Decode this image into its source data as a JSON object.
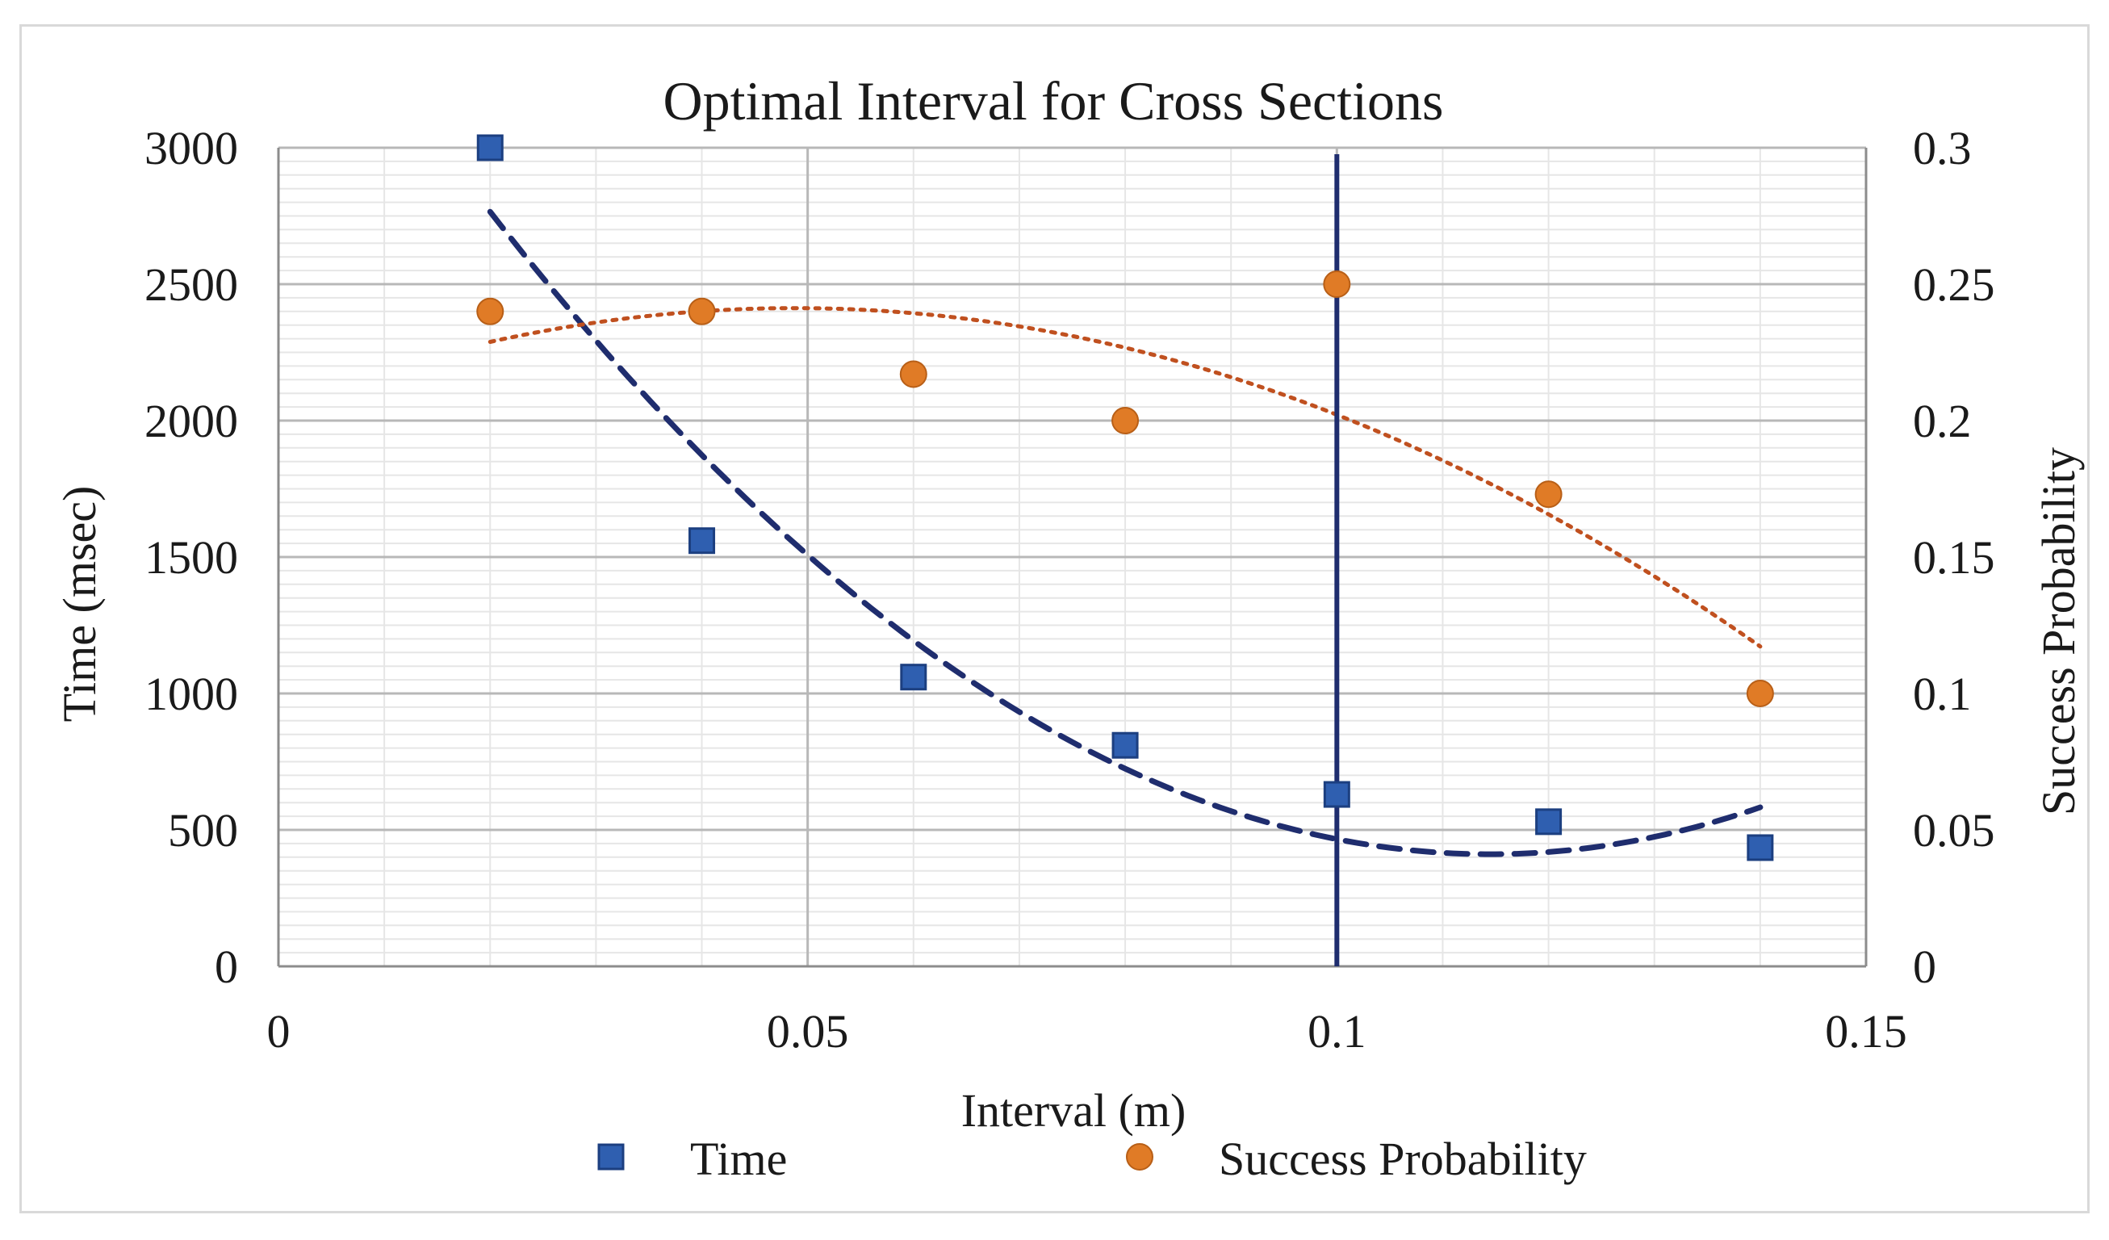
{
  "chart_data": {
    "type": "scatter",
    "title": "Optimal Interval for Cross Sections",
    "xlabel": "Interval (m)",
    "ylabel_left": "Time (msec)",
    "ylabel_right": "Success Probability",
    "xlim": [
      0,
      0.15
    ],
    "ylim_left": [
      0,
      3000
    ],
    "ylim_right": [
      0,
      0.3
    ],
    "x_ticks": [
      "0",
      "0.05",
      "0.1",
      "0.15"
    ],
    "y_left_ticks": [
      "0",
      "500",
      "1000",
      "1500",
      "2000",
      "2500",
      "3000"
    ],
    "y_right_ticks": [
      "0",
      "0.05",
      "0.1",
      "0.15",
      "0.2",
      "0.25",
      "0.3"
    ],
    "grid": true,
    "legend_position": "bottom",
    "vertical_line_x": 0.1,
    "series": [
      {
        "name": "Time",
        "axis": "left",
        "marker": "square",
        "color": "#2f5fb0",
        "x": [
          0.02,
          0.04,
          0.06,
          0.08,
          0.1,
          0.12,
          0.14
        ],
        "y": [
          3000,
          1560,
          1060,
          810,
          630,
          530,
          435
        ],
        "trendline": {
          "type": "polynomial-2",
          "style": "dashed",
          "color": "#1f2d6e"
        }
      },
      {
        "name": "Success Probability",
        "axis": "right",
        "marker": "circle",
        "color": "#e07b26",
        "x": [
          0.02,
          0.04,
          0.06,
          0.08,
          0.1,
          0.12,
          0.14
        ],
        "y": [
          0.24,
          0.24,
          0.217,
          0.2,
          0.25,
          0.173,
          0.1
        ],
        "trendline": {
          "type": "polynomial-2",
          "style": "dotted",
          "color": "#c0501f"
        }
      }
    ]
  }
}
